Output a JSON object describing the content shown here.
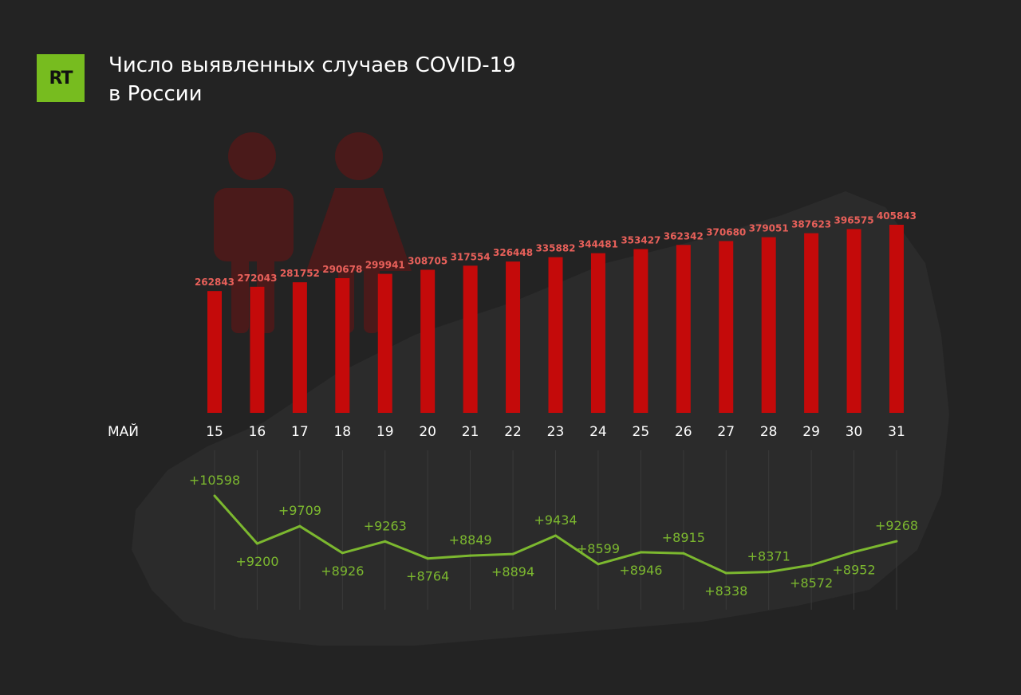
{
  "logo": {
    "text": "RT",
    "color": "#77bc1f"
  },
  "title": {
    "line1": "Число выявленных случаев COVID-19",
    "line2": "в России"
  },
  "chart_data": {
    "type": "bar+line",
    "month_label": "МАЙ",
    "categories": [
      "15",
      "16",
      "17",
      "18",
      "19",
      "20",
      "21",
      "22",
      "23",
      "24",
      "25",
      "26",
      "27",
      "28",
      "29",
      "30",
      "31"
    ],
    "total_cases": {
      "type": "bar",
      "color": "#c40a0a",
      "label_color": "#e8605a",
      "values": [
        262843,
        272043,
        281752,
        290678,
        299941,
        308705,
        317554,
        326448,
        335882,
        344481,
        353427,
        362342,
        370680,
        379051,
        387623,
        396575,
        405843
      ]
    },
    "daily_new": {
      "type": "line",
      "color": "#7cb82f",
      "values": [
        10598,
        9200,
        9709,
        8926,
        9263,
        8764,
        8849,
        8894,
        9434,
        8599,
        8946,
        8915,
        8338,
        8371,
        8572,
        8952,
        9268
      ],
      "labels": [
        "+10598",
        "+9200",
        "+9709",
        "+8926",
        "+9263",
        "+8764",
        "+8849",
        "+8894",
        "+9434",
        "+8599",
        "+8946",
        "+8915",
        "+8338",
        "+8371",
        "+8572",
        "+8952",
        "+9268"
      ],
      "label_positions": [
        "above",
        "below",
        "above",
        "below",
        "above",
        "below",
        "above",
        "below",
        "above",
        "above",
        "below",
        "above",
        "below",
        "above",
        "below",
        "below",
        "above"
      ]
    }
  }
}
